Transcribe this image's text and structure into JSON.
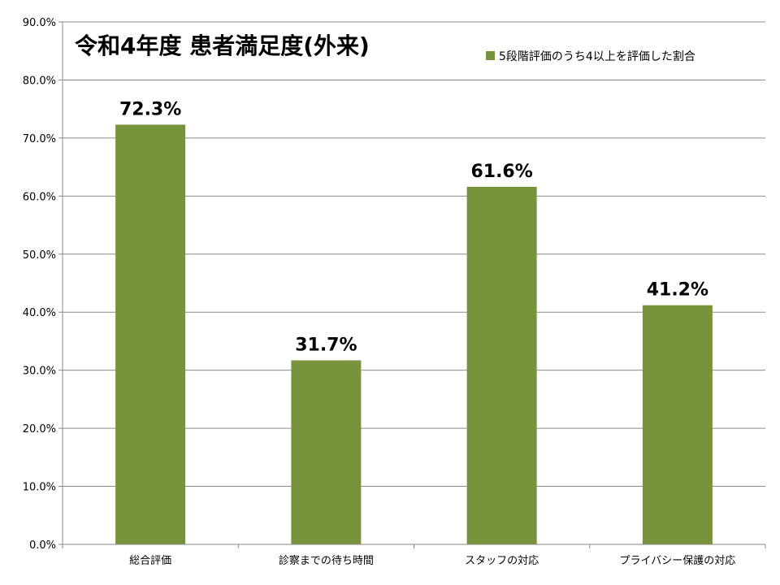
{
  "chart_data": {
    "type": "bar",
    "title": "令和4年度 患者満足度(外来)",
    "categories": [
      "総合評価",
      "診察までの待ち時間",
      "スタッフの対応",
      "プライバシー保護の対応"
    ],
    "series": [
      {
        "name": "5段階評価のうち4以上を評価した割合",
        "values": [
          72.3,
          31.7,
          61.6,
          41.2
        ],
        "color": "#77933C"
      }
    ],
    "data_labels": [
      "72.3%",
      "31.7%",
      "61.6%",
      "41.2%"
    ],
    "ylim": [
      0,
      90
    ],
    "yticks": [
      "0.0%",
      "10.0%",
      "20.0%",
      "30.0%",
      "40.0%",
      "50.0%",
      "60.0%",
      "70.0%",
      "80.0%",
      "90.0%"
    ],
    "grid": true,
    "legend_position": "top-right"
  }
}
